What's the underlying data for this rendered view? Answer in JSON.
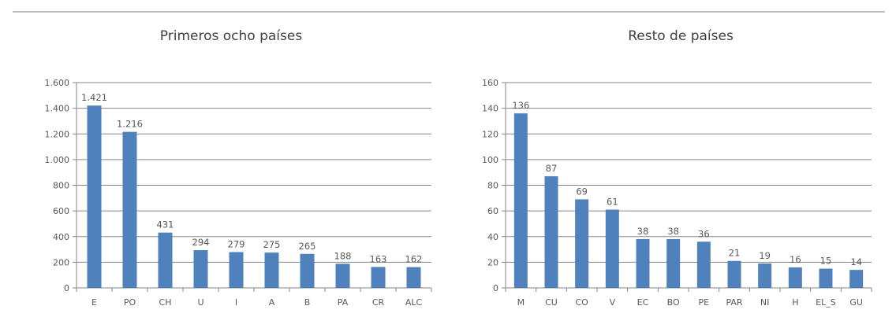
{
  "chart_data": [
    {
      "type": "bar",
      "title": "Primeros ocho países",
      "categories": [
        "E",
        "PO",
        "CH",
        "U",
        "I",
        "A",
        "B",
        "PA",
        "CR",
        "ALC"
      ],
      "values": [
        1421,
        1216,
        431,
        294,
        279,
        275,
        265,
        188,
        163,
        162
      ],
      "data_labels": [
        "1.421",
        "1.216",
        "431",
        "294",
        "279",
        "275",
        "265",
        "188",
        "163",
        "162"
      ],
      "ylim": [
        0,
        1600
      ],
      "yticks": [
        0,
        200,
        400,
        600,
        800,
        1000,
        1200,
        1400,
        1600
      ],
      "ytick_labels": [
        "0",
        "200",
        "400",
        "600",
        "800",
        "1.000",
        "1.200",
        "1.400",
        "1.600"
      ],
      "grid": true,
      "bar_color": "#4f81bd"
    },
    {
      "type": "bar",
      "title": "Resto de países",
      "categories": [
        "M",
        "CU",
        "CO",
        "V",
        "EC",
        "BO",
        "PE",
        "PAR",
        "NI",
        "H",
        "EL_S",
        "GU"
      ],
      "values": [
        136,
        87,
        69,
        61,
        38,
        38,
        36,
        21,
        19,
        16,
        15,
        14
      ],
      "data_labels": [
        "136",
        "87",
        "69",
        "61",
        "38",
        "38",
        "36",
        "21",
        "19",
        "16",
        "15",
        "14"
      ],
      "ylim": [
        0,
        160
      ],
      "yticks": [
        0,
        20,
        40,
        60,
        80,
        100,
        120,
        140,
        160
      ],
      "ytick_labels": [
        "0",
        "20",
        "40",
        "60",
        "80",
        "100",
        "120",
        "140",
        "160"
      ],
      "grid": true,
      "bar_color": "#4f81bd"
    }
  ]
}
